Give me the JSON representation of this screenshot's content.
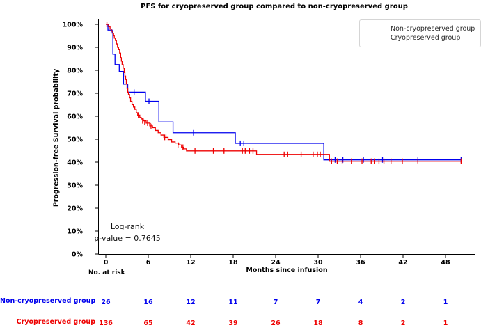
{
  "chart_data": {
    "type": "line",
    "subtype": "kaplan-meier-step",
    "title": "PFS for cryopreserved group compared to non-cryopreserved group",
    "xlabel": "Months since infusion",
    "ylabel": "Progression-free Survival probability",
    "x_ticks": [
      0,
      6,
      12,
      18,
      24,
      30,
      36,
      42,
      48
    ],
    "y_ticks_percent": [
      0,
      10,
      20,
      30,
      40,
      50,
      60,
      70,
      80,
      90,
      100
    ],
    "xlim": [
      0,
      50.5
    ],
    "ylim_percent": [
      0,
      100
    ],
    "grid": false,
    "legend_position": "upper right",
    "annotation": {
      "line1": "Log-rank",
      "line2": "p-value = 0.7645"
    },
    "series": [
      {
        "name": "Non-cryopreserved group",
        "color": "#0000ee",
        "steps": [
          [
            0,
            100
          ],
          [
            0.3,
            97.5
          ],
          [
            0.9,
            96.2
          ],
          [
            1.0,
            87
          ],
          [
            1.3,
            82.5
          ],
          [
            1.9,
            79.5
          ],
          [
            2.5,
            74
          ],
          [
            3.1,
            70.5
          ],
          [
            5.6,
            66.5
          ],
          [
            7.5,
            57.5
          ],
          [
            9.5,
            52.8
          ],
          [
            18.3,
            48.2
          ],
          [
            30.8,
            41.0
          ]
        ],
        "end": 50.3,
        "censors": [
          [
            4.0,
            70.5
          ],
          [
            6.1,
            66.5
          ],
          [
            12.4,
            52.8
          ],
          [
            19.0,
            48.2
          ],
          [
            19.5,
            48.2
          ],
          [
            32.4,
            41.0
          ],
          [
            33.5,
            41.0
          ],
          [
            36.4,
            41.0
          ],
          [
            39.1,
            41.0
          ],
          [
            44.1,
            41.0
          ],
          [
            50.2,
            41.0
          ]
        ]
      },
      {
        "name": "Cryopreserved group",
        "color": "#ee0000",
        "steps": [
          [
            0,
            100
          ],
          [
            0.4,
            99
          ],
          [
            0.6,
            98
          ],
          [
            0.8,
            97
          ],
          [
            1.0,
            96
          ],
          [
            1.1,
            95
          ],
          [
            1.2,
            94
          ],
          [
            1.35,
            93
          ],
          [
            1.5,
            91.5
          ],
          [
            1.65,
            90
          ],
          [
            1.8,
            89
          ],
          [
            1.95,
            87.5
          ],
          [
            2.1,
            85.5
          ],
          [
            2.2,
            84
          ],
          [
            2.3,
            82.5
          ],
          [
            2.45,
            81
          ],
          [
            2.6,
            79
          ],
          [
            2.7,
            77.5
          ],
          [
            2.8,
            76
          ],
          [
            2.9,
            74
          ],
          [
            3.0,
            72
          ],
          [
            3.1,
            70.5
          ],
          [
            3.2,
            69.5
          ],
          [
            3.35,
            68
          ],
          [
            3.5,
            66.5
          ],
          [
            3.7,
            65
          ],
          [
            3.9,
            64
          ],
          [
            4.1,
            63
          ],
          [
            4.3,
            61.5
          ],
          [
            4.5,
            60.5
          ],
          [
            4.8,
            59.5
          ],
          [
            5.0,
            58.8
          ],
          [
            5.3,
            58
          ],
          [
            5.7,
            57
          ],
          [
            6.2,
            55.8
          ],
          [
            6.6,
            55
          ],
          [
            7.0,
            53.8
          ],
          [
            7.4,
            52.8
          ],
          [
            7.8,
            51.8
          ],
          [
            8.2,
            50.8
          ],
          [
            8.8,
            49.8
          ],
          [
            9.3,
            48.8
          ],
          [
            9.8,
            48.3
          ],
          [
            10.3,
            47.5
          ],
          [
            10.7,
            46.5
          ],
          [
            11.0,
            45.8
          ],
          [
            11.4,
            44.9
          ],
          [
            21.3,
            43.4
          ],
          [
            31.6,
            40.4
          ]
        ],
        "end": 50.3,
        "censors": [
          [
            0.15,
            100
          ],
          [
            4.6,
            60.5
          ],
          [
            5.2,
            58
          ],
          [
            5.5,
            57.3
          ],
          [
            5.9,
            57
          ],
          [
            6.3,
            55.8
          ],
          [
            6.5,
            55.5
          ],
          [
            8.3,
            50.8
          ],
          [
            8.5,
            50.8
          ],
          [
            10.2,
            47.5
          ],
          [
            10.9,
            46.5
          ],
          [
            12.6,
            44.9
          ],
          [
            15.2,
            44.9
          ],
          [
            16.7,
            44.9
          ],
          [
            19.3,
            44.9
          ],
          [
            19.7,
            44.9
          ],
          [
            20.3,
            44.9
          ],
          [
            20.8,
            44.9
          ],
          [
            25.2,
            43.4
          ],
          [
            25.7,
            43.4
          ],
          [
            27.6,
            43.4
          ],
          [
            29.3,
            43.4
          ],
          [
            29.9,
            43.4
          ],
          [
            30.3,
            43.4
          ],
          [
            31.9,
            40.4
          ],
          [
            32.7,
            40.4
          ],
          [
            33.4,
            40.4
          ],
          [
            34.7,
            40.4
          ],
          [
            36.2,
            40.4
          ],
          [
            37.5,
            40.4
          ],
          [
            38.0,
            40.4
          ],
          [
            38.6,
            40.4
          ],
          [
            39.3,
            40.4
          ],
          [
            40.3,
            40.4
          ],
          [
            41.9,
            40.4
          ],
          [
            44.1,
            40.4
          ],
          [
            50.2,
            40.4
          ]
        ]
      }
    ],
    "risk_table": {
      "header": "No. at risk",
      "times": [
        0,
        6,
        12,
        18,
        24,
        30,
        36,
        42,
        48
      ],
      "rows": [
        {
          "name": "Non-cryopreserved group",
          "color": "#0000ee",
          "values": [
            26,
            16,
            12,
            11,
            7,
            7,
            4,
            2,
            1
          ]
        },
        {
          "name": "Cryopreserved group",
          "color": "#ee0000",
          "values": [
            136,
            65,
            42,
            39,
            26,
            18,
            8,
            2,
            1
          ]
        }
      ]
    }
  }
}
